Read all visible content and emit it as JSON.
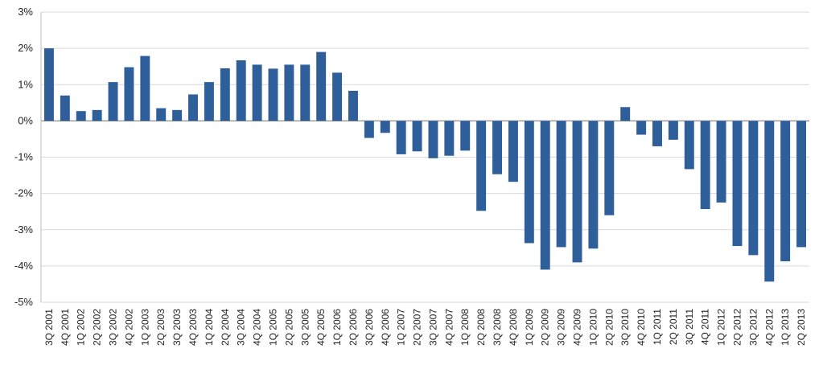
{
  "chart_data": {
    "type": "bar",
    "title": "",
    "xlabel": "",
    "ylabel": "",
    "ylim": [
      -5,
      3
    ],
    "yticks": [
      3,
      2,
      1,
      0,
      -1,
      -2,
      -3,
      -4,
      -5
    ],
    "ytick_labels": [
      "3%",
      "2%",
      "1%",
      "0%",
      "-1%",
      "-2%",
      "-3%",
      "-4%",
      "-5%"
    ],
    "grid": true,
    "legend": "none",
    "bar_color": "#2e5f9a",
    "categories": [
      "3Q 2001",
      "4Q 2001",
      "1Q 2002",
      "2Q 2002",
      "3Q 2002",
      "4Q 2002",
      "1Q 2003",
      "2Q 2003",
      "3Q 2003",
      "4Q 2003",
      "1Q 2004",
      "2Q 2004",
      "3Q 2004",
      "4Q 2004",
      "1Q 2005",
      "2Q 2005",
      "3Q 2005",
      "4Q 2005",
      "1Q 2006",
      "2Q 2006",
      "3Q 2006",
      "4Q 2006",
      "1Q 2007",
      "2Q 2007",
      "3Q 2007",
      "4Q 2007",
      "1Q 2008",
      "2Q 2008",
      "3Q 2008",
      "4Q 2008",
      "1Q 2009",
      "2Q 2009",
      "3Q 2009",
      "4Q 2009",
      "1Q 2010",
      "2Q 2010",
      "3Q 2010",
      "4Q 2010",
      "1Q 2011",
      "2Q 2011",
      "3Q 2011",
      "4Q 2011",
      "1Q 2012",
      "2Q 2012",
      "3Q 2012",
      "4Q 2012",
      "1Q 2013",
      "2Q 2013"
    ],
    "values": [
      2.0,
      0.7,
      0.27,
      0.3,
      1.07,
      1.48,
      1.79,
      0.35,
      0.3,
      0.73,
      1.07,
      1.45,
      1.67,
      1.55,
      1.44,
      1.55,
      1.55,
      1.9,
      1.33,
      0.83,
      -0.47,
      -0.33,
      -0.92,
      -0.84,
      -1.03,
      -0.96,
      -0.82,
      -2.48,
      -1.47,
      -1.68,
      -3.37,
      -4.1,
      -3.48,
      -3.9,
      -3.52,
      -2.6,
      0.38,
      -0.38,
      -0.7,
      -0.52,
      -1.33,
      -2.43,
      -2.25,
      -3.45,
      -3.7,
      -4.43,
      -3.87,
      -3.48
    ]
  }
}
